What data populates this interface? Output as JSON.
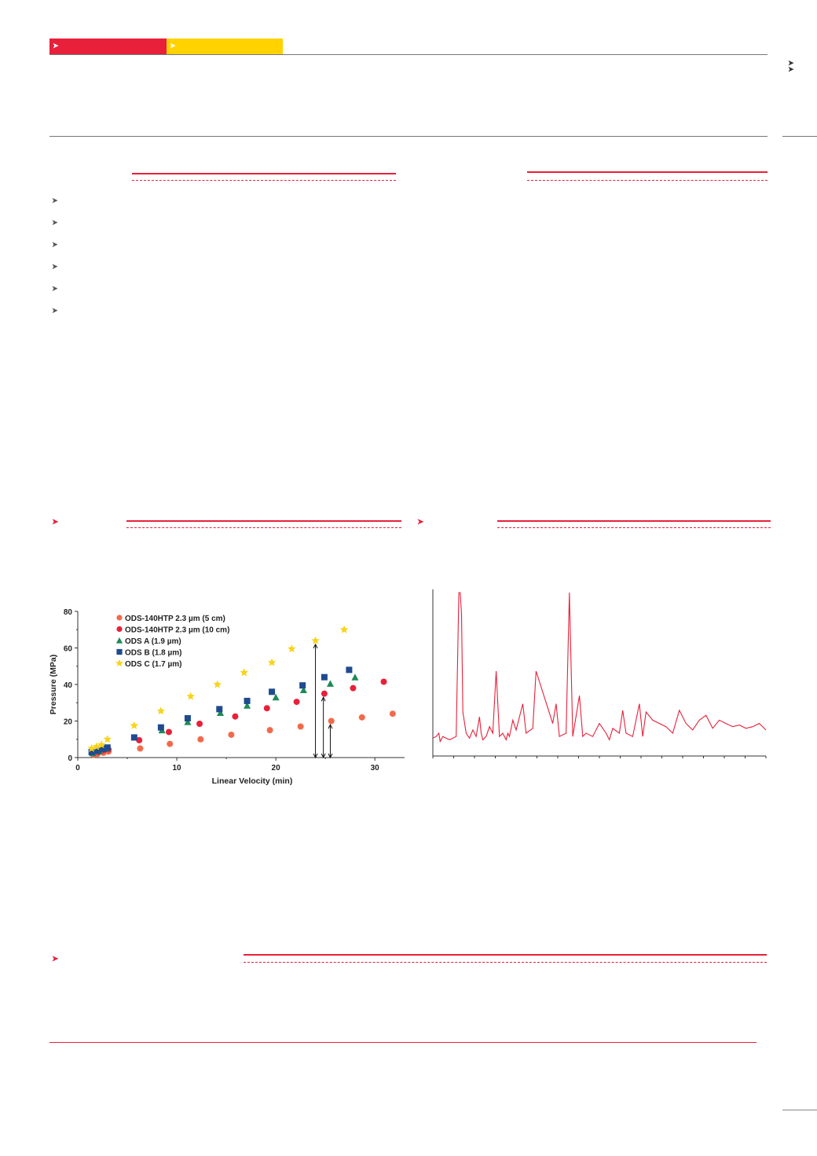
{
  "header": {
    "tab_icon": "arrow-right-icon",
    "colors": {
      "brand_red": "#e8203a",
      "brand_yellow": "#ffd200"
    }
  },
  "bullets": {
    "count": 6,
    "icon": "arrow-right-icon"
  },
  "chart_data": [
    {
      "type": "scatter",
      "xlabel": "Linear Velocity (min)",
      "ylabel": "Pressure (MPa)",
      "xlim": [
        0,
        33
      ],
      "ylim": [
        0,
        80
      ],
      "xticks": [
        "0",
        "10",
        "20",
        "30"
      ],
      "yticks": [
        "0",
        "20",
        "40",
        "60",
        "80"
      ],
      "legend_position": "top-left",
      "series": [
        {
          "name": "ODS-140HTP 2.3 µm (5 cm)",
          "color": "#f26a4b",
          "marker": "circle",
          "points": [
            [
              1.6,
              1.5
            ],
            [
              2.0,
              2.0
            ],
            [
              2.6,
              2.6
            ],
            [
              3.1,
              3.3
            ],
            [
              6.3,
              5.0
            ],
            [
              9.3,
              7.5
            ],
            [
              12.4,
              10.0
            ],
            [
              15.5,
              12.5
            ],
            [
              19.4,
              15.0
            ],
            [
              22.5,
              17.0
            ],
            [
              25.6,
              20.0
            ],
            [
              28.7,
              22.0
            ],
            [
              31.8,
              24.0
            ]
          ]
        },
        {
          "name": "ODS-140HTP 2.3 µm (10 cm)",
          "color": "#e8203a",
          "marker": "circle",
          "points": [
            [
              1.6,
              2.5
            ],
            [
              2.1,
              3.0
            ],
            [
              2.6,
              4.0
            ],
            [
              3.1,
              4.5
            ],
            [
              6.2,
              9.5
            ],
            [
              9.2,
              14.0
            ],
            [
              12.3,
              18.5
            ],
            [
              15.9,
              22.5
            ],
            [
              19.1,
              27.0
            ],
            [
              22.1,
              30.5
            ],
            [
              24.9,
              35.0
            ],
            [
              27.8,
              38.0
            ],
            [
              30.9,
              41.5
            ]
          ]
        },
        {
          "name": "ODS A (1.9 µm)",
          "color": "#1e8a55",
          "marker": "triangle",
          "points": [
            [
              1.5,
              2.5
            ],
            [
              2.2,
              3.5
            ],
            [
              2.9,
              5.0
            ],
            [
              8.5,
              15.0
            ],
            [
              11.1,
              19.5
            ],
            [
              14.4,
              24.5
            ],
            [
              17.1,
              28.5
            ],
            [
              20.0,
              33.0
            ],
            [
              22.8,
              37.0
            ],
            [
              25.5,
              40.5
            ],
            [
              28.0,
              44.0
            ]
          ]
        },
        {
          "name": "ODS B (1.8 µm)",
          "color": "#1f4b8e",
          "marker": "square",
          "points": [
            [
              1.4,
              3.0
            ],
            [
              2.0,
              3.8
            ],
            [
              2.6,
              4.8
            ],
            [
              3.0,
              5.5
            ],
            [
              5.7,
              11.0
            ],
            [
              8.4,
              16.5
            ],
            [
              11.1,
              21.5
            ],
            [
              14.3,
              26.5
            ],
            [
              17.1,
              31.0
            ],
            [
              19.6,
              36.0
            ],
            [
              22.7,
              39.5
            ],
            [
              24.9,
              44.0
            ],
            [
              27.4,
              48.0
            ]
          ]
        },
        {
          "name": "ODS C (1.7 µm)",
          "color": "#f7d417",
          "marker": "star",
          "points": [
            [
              1.4,
              5.0
            ],
            [
              1.9,
              6.0
            ],
            [
              2.4,
              7.0
            ],
            [
              3.0,
              10.0
            ],
            [
              5.7,
              17.5
            ],
            [
              8.4,
              25.5
            ],
            [
              11.4,
              33.5
            ],
            [
              14.1,
              40.0
            ],
            [
              16.8,
              46.5
            ],
            [
              19.6,
              52.0
            ],
            [
              21.6,
              59.5
            ],
            [
              24.0,
              64.0
            ],
            [
              26.9,
              70.0
            ]
          ]
        }
      ],
      "annotations": [
        {
          "type": "double-arrow",
          "x": 24.0,
          "y": [
            0,
            62
          ]
        },
        {
          "type": "double-arrow",
          "x": 24.8,
          "y": [
            0,
            33
          ]
        },
        {
          "type": "double-arrow",
          "x": 25.5,
          "y": [
            0,
            18
          ]
        }
      ]
    },
    {
      "type": "line",
      "xlabel": "",
      "ylabel": "",
      "xlim": [
        0,
        1
      ],
      "ylim": [
        0,
        1
      ],
      "series": [
        {
          "color": "#e8203a",
          "x": [
            0.0,
            0.01,
            0.018,
            0.022,
            0.03,
            0.05,
            0.07,
            0.078,
            0.082,
            0.086,
            0.09,
            0.1,
            0.11,
            0.12,
            0.13,
            0.14,
            0.145,
            0.15,
            0.16,
            0.17,
            0.18,
            0.19,
            0.2,
            0.21,
            0.22,
            0.225,
            0.23,
            0.24,
            0.25,
            0.27,
            0.28,
            0.3,
            0.31,
            0.36,
            0.37,
            0.38,
            0.4,
            0.41,
            0.42,
            0.44,
            0.45,
            0.46,
            0.48,
            0.5,
            0.52,
            0.53,
            0.54,
            0.56,
            0.57,
            0.58,
            0.6,
            0.62,
            0.63,
            0.64,
            0.66,
            0.7,
            0.72,
            0.74,
            0.76,
            0.78,
            0.8,
            0.82,
            0.84,
            0.86,
            0.88,
            0.9,
            0.92,
            0.94,
            0.96,
            0.98,
            1.0
          ],
          "y": [
            0.09,
            0.1,
            0.12,
            0.07,
            0.1,
            0.08,
            0.1,
            0.98,
            0.98,
            0.85,
            0.25,
            0.12,
            0.09,
            0.14,
            0.1,
            0.22,
            0.12,
            0.08,
            0.1,
            0.16,
            0.12,
            0.5,
            0.1,
            0.12,
            0.08,
            0.12,
            0.1,
            0.2,
            0.14,
            0.3,
            0.12,
            0.15,
            0.5,
            0.18,
            0.3,
            0.1,
            0.12,
            0.98,
            0.1,
            0.35,
            0.1,
            0.12,
            0.1,
            0.18,
            0.12,
            0.08,
            0.15,
            0.12,
            0.26,
            0.12,
            0.1,
            0.3,
            0.1,
            0.25,
            0.2,
            0.16,
            0.12,
            0.26,
            0.18,
            0.14,
            0.2,
            0.23,
            0.15,
            0.2,
            0.18,
            0.16,
            0.17,
            0.15,
            0.16,
            0.18,
            0.14
          ]
        }
      ]
    }
  ]
}
